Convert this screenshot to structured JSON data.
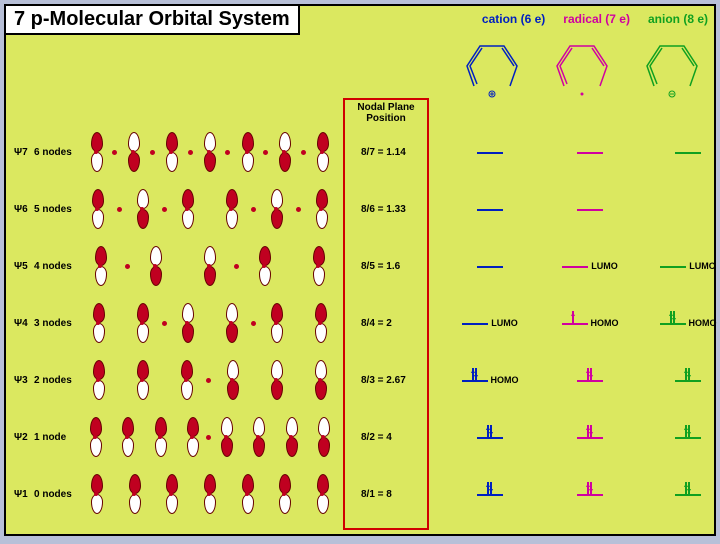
{
  "title": "7 p-Molecular Orbital System",
  "headers": {
    "cation": "cation (6 e)",
    "radical": "radical (7 e)",
    "anion": "anion (8 e)"
  },
  "nodal_title": "Nodal Plane Position",
  "rows": [
    {
      "psi": "Ψ7",
      "nodes": "6 nodes",
      "pattern": [
        1,
        0,
        1,
        0,
        1,
        0,
        1,
        0,
        1,
        0,
        1,
        0,
        1
      ],
      "nodal": "8/7 = 1.14",
      "cation": {
        "occ": 0,
        "tag": ""
      },
      "radical": {
        "occ": 0,
        "tag": ""
      },
      "anion": {
        "occ": 0,
        "tag": ""
      }
    },
    {
      "psi": "Ψ6",
      "nodes": "5 nodes",
      "pattern": [
        1,
        0,
        1,
        0,
        1,
        2,
        1,
        0,
        1,
        0,
        1
      ],
      "nodal": "8/6 = 1.33",
      "cation": {
        "occ": 0,
        "tag": ""
      },
      "radical": {
        "occ": 0,
        "tag": ""
      },
      "anion": {
        "occ": 0,
        "tag": ""
      }
    },
    {
      "psi": "Ψ5",
      "nodes": "4 nodes",
      "pattern": [
        1,
        0,
        1,
        2,
        1,
        0,
        1,
        2,
        1
      ],
      "nodal": "8/5 = 1.6",
      "cation": {
        "occ": 0,
        "tag": ""
      },
      "radical": {
        "occ": 0,
        "tag": "LUMO"
      },
      "anion": {
        "occ": 0,
        "tag": "LUMO"
      }
    },
    {
      "psi": "Ψ4",
      "nodes": "3 nodes",
      "pattern": [
        1,
        2,
        1,
        0,
        1,
        2,
        1,
        0,
        1,
        2,
        1
      ],
      "nodal": "8/4 = 2",
      "cation": {
        "occ": 0,
        "tag": "LUMO"
      },
      "radical": {
        "occ": 1,
        "tag": "HOMO"
      },
      "anion": {
        "occ": 2,
        "tag": "HOMO"
      }
    },
    {
      "psi": "Ψ3",
      "nodes": "2 nodes",
      "pattern": [
        1,
        2,
        1,
        2,
        1,
        0,
        1,
        2,
        1,
        2,
        1
      ],
      "nodal": "8/3 = 2.67",
      "cation": {
        "occ": 2,
        "tag": "HOMO"
      },
      "radical": {
        "occ": 2,
        "tag": ""
      },
      "anion": {
        "occ": 2,
        "tag": ""
      }
    },
    {
      "psi": "Ψ2",
      "nodes": "1 node",
      "pattern": [
        1,
        2,
        1,
        2,
        1,
        2,
        1,
        0,
        1,
        2,
        1,
        2,
        1,
        2,
        1
      ],
      "nodal": "8/2 = 4",
      "cation": {
        "occ": 2,
        "tag": ""
      },
      "radical": {
        "occ": 2,
        "tag": ""
      },
      "anion": {
        "occ": 2,
        "tag": ""
      }
    },
    {
      "psi": "Ψ1",
      "nodes": "0 nodes",
      "pattern": [
        1,
        2,
        1,
        2,
        1,
        2,
        1,
        2,
        1,
        2,
        1,
        2,
        1
      ],
      "nodal": "8/1 = 8",
      "cation": {
        "occ": 2,
        "tag": ""
      },
      "radical": {
        "occ": 2,
        "tag": ""
      },
      "anion": {
        "occ": 2,
        "tag": ""
      }
    }
  ],
  "colors": {
    "lobe_fill": "#c00020",
    "lobe_stroke": "#600000",
    "cation": "#0020c0",
    "radical": "#d000a0",
    "anion": "#10a020",
    "bg": "#dbe860",
    "border": "#000000",
    "nodal_border": "#d00000"
  },
  "row_top_start": 118,
  "row_spacing": 57
}
